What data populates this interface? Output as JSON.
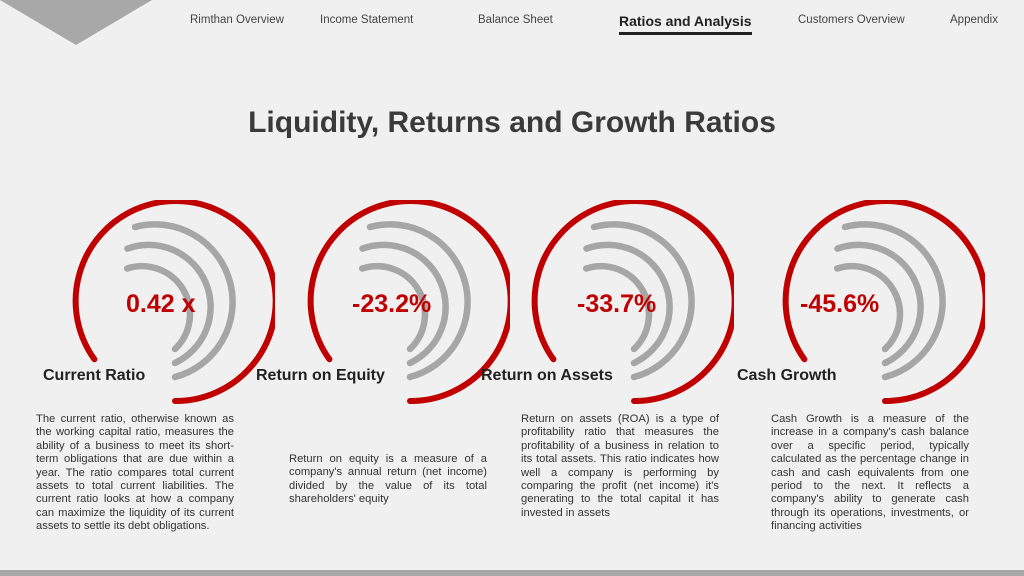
{
  "nav": {
    "items": [
      {
        "label": "Rimthan Overview",
        "active": false
      },
      {
        "label": "Income Statement",
        "active": false
      },
      {
        "label": "Balance Sheet",
        "active": false
      },
      {
        "label": "Ratios and Analysis",
        "active": true
      },
      {
        "label": "Customers Overview",
        "active": false
      },
      {
        "label": "Appendix",
        "active": false
      }
    ]
  },
  "page": {
    "title": "Liquidity, Returns and Growth Ratios"
  },
  "colors": {
    "accent_red": "#c00000",
    "ring_gray": "#a6a6a6",
    "background": "#f0f0f0"
  },
  "metrics": [
    {
      "value": "0.42 x",
      "label": "Current Ratio",
      "description": "The current ratio, otherwise known as the working capital ratio, measures the ability of a business to meet its short-term obligations that are due within a year. The ratio compares total current assets to total current liabilities. The current ratio looks at how a company can maximize the liquidity of its current assets to settle its debt obligations."
    },
    {
      "value": "-23.2%",
      "label": "Return on Equity",
      "description": "Return on equity is a measure of a company's annual return (net income) divided by the value of its total shareholders' equity"
    },
    {
      "value": "-33.7%",
      "label": "Return on Assets",
      "description": "Return on assets (ROA) is a type of profitability ratio that measures the profitability of a business in relation to its total assets. This ratio indicates how well a company is performing by comparing the profit (net income) it's generating to the total capital it has invested in assets"
    },
    {
      "value": "-45.6%",
      "label": "Cash Growth",
      "description": "Cash Growth is a measure of the increase in a company's cash balance over a specific period, typically calculated as the percentage change in cash and cash equivalents from one period to the next. It reflects a company's ability to generate cash through its operations, investments, or financing activities"
    }
  ]
}
